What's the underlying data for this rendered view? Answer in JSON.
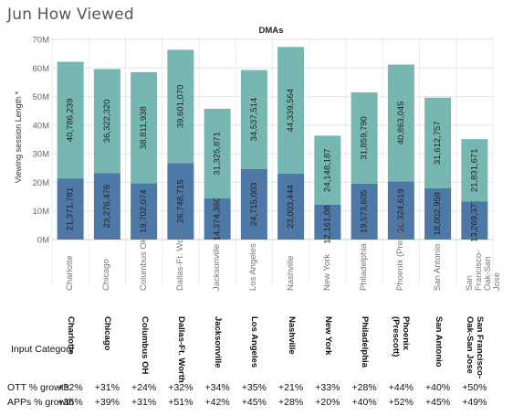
{
  "title": "Jun How Viewed",
  "chart_data": {
    "type": "bar",
    "stacked": true,
    "title": "DMAs",
    "ylabel": "Viewing session Length *",
    "ylim": [
      0,
      70000000
    ],
    "yticks": [
      "0M",
      "10M",
      "20M",
      "30M",
      "40M",
      "50M",
      "60M",
      "70M"
    ],
    "grid": true,
    "categories": [
      "Charlotte",
      "Chicago",
      "Columbus OH",
      "Dallas-Ft. Worth",
      "Jacksonville",
      "Los Angeles",
      "Nashville",
      "New York",
      "Philadelphia",
      "Phoenix (Prescott)",
      "San Antonio",
      "San Francisco-Oak-San Jose"
    ],
    "category_labels": [
      "Charlotte",
      "Chicago",
      "Columbus OH",
      "Dallas-Ft. Worth",
      "Jacksonville",
      "Los Angeles",
      "Nashville",
      "New York",
      "Philadelphia",
      "Phoenix (Prescott)",
      "San Antonio",
      "San Francisco-Oak-San Jose"
    ],
    "series": [
      {
        "color": "#4e79a7",
        "values": [
          21371781,
          23276476,
          19702074,
          26748715,
          14374360,
          24715003,
          23003444,
          12161086,
          19573605,
          20324619,
          18002958,
          13269377
        ],
        "labels": [
          "21,371,781",
          "23,276,476",
          "19,702,074",
          "26,748,715",
          "14,374,360",
          "24,715,003",
          "23,003,444",
          "12,161,086",
          "19,573,605",
          "20,324,619",
          "18,002,958",
          "13,269,377"
        ]
      },
      {
        "color": "#76b7b2",
        "values": [
          40786239,
          36322320,
          38811938,
          39601070,
          31325871,
          34537514,
          44339564,
          24148187,
          31859790,
          40863045,
          31612757,
          21831671
        ],
        "labels": [
          "40,786,239",
          "36,322,320",
          "38,811,938",
          "39,601,070",
          "31,325,871",
          "34,537,514",
          "44,339,564",
          "24,148,187",
          "31,859,790",
          "40,863,045",
          "31,612,757",
          "21,831,671"
        ]
      }
    ]
  },
  "table": {
    "header_label": "Input Category",
    "columns": [
      "Charlotte",
      "Chicago",
      "Columbus OH",
      "Dallas-Ft. Worth",
      "Jacksonville",
      "Los Angeles",
      "Nashville",
      "New York",
      "Philadelphia",
      "Phoenix (Prescott)",
      "San Antonio",
      "San Francisco-Oak-San Jose"
    ],
    "column_labels": [
      [
        "Charlotte"
      ],
      [
        "Chicago"
      ],
      [
        "Columbus OH"
      ],
      [
        "Dallas-Ft. Worth"
      ],
      [
        "Jacksonville"
      ],
      [
        "Los Angeles"
      ],
      [
        "Nashville"
      ],
      [
        "New York"
      ],
      [
        "Philadelphia"
      ],
      [
        "Phoenix",
        "(Prescott)"
      ],
      [
        "San Antonio"
      ],
      [
        "San Francisco-",
        "Oak-San Jose"
      ]
    ],
    "rows": [
      {
        "label": "OTT % growth",
        "values": [
          "+32%",
          "+31%",
          "+24%",
          "+32%",
          "+34%",
          "+35%",
          "+21%",
          "+33%",
          "+28%",
          "+44%",
          "+40%",
          "+50%"
        ]
      },
      {
        "label": "APPs % growth",
        "values": [
          "+36%",
          "+39%",
          "+31%",
          "+51%",
          "+42%",
          "+45%",
          "+28%",
          "+20%",
          "+40%",
          "+52%",
          "+45%",
          "+49%"
        ]
      }
    ]
  }
}
